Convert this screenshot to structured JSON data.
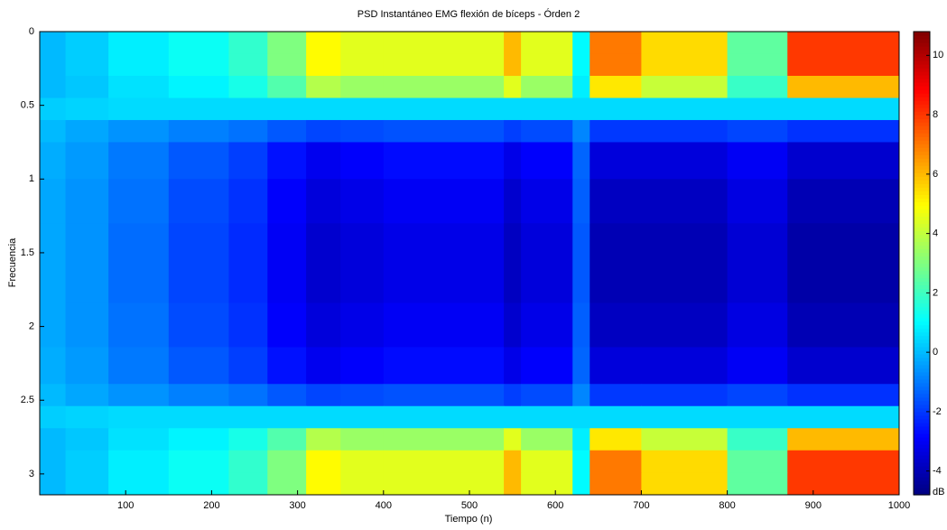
{
  "chart_data": {
    "type": "heatmap",
    "title": "PSD Instantáneo EMG flexión de bíceps - Órden 2",
    "x_label": "Tiempo (n)",
    "y_label": "Frecuencia",
    "colorbar_label": "dB",
    "colormap": "jet",
    "xbins": [
      0,
      30,
      80,
      150,
      220,
      265,
      310,
      350,
      400,
      540,
      560,
      620,
      640,
      700,
      800,
      870,
      1000
    ],
    "ybins": [
      0,
      0.15,
      0.3,
      0.45,
      0.6,
      0.75,
      1.0,
      1.3,
      1.84,
      2.14,
      2.39,
      2.54,
      2.69,
      2.84,
      2.99,
      3.1416
    ],
    "z": [
      [
        0,
        0.3,
        0.8,
        1.2,
        1.8,
        3,
        5,
        4.5,
        4.5,
        6,
        4.5,
        1,
        7,
        5.5,
        2.5,
        8
      ],
      [
        0,
        0.3,
        0.8,
        1.2,
        1.8,
        3,
        5,
        4.5,
        4.5,
        6,
        4.5,
        1,
        7,
        5.5,
        2.5,
        8
      ],
      [
        0,
        0.2,
        0.6,
        0.9,
        1.4,
        2.3,
        3.8,
        3.4,
        3.4,
        4.5,
        3.4,
        0.8,
        5.3,
        4.1,
        1.9,
        6
      ],
      [
        0.3,
        0.4,
        0.5,
        0.5,
        0.5,
        0.5,
        0.5,
        0.5,
        0.5,
        0.5,
        0.5,
        0.5,
        0.5,
        0.5,
        0.5,
        0.5
      ],
      [
        0,
        -0.3,
        -0.6,
        -0.9,
        -1.1,
        -1.5,
        -1.8,
        -1.7,
        -1.6,
        -1.9,
        -1.7,
        -0.8,
        -2,
        -2,
        -1.8,
        -2.1
      ],
      [
        -0.2,
        -0.5,
        -1,
        -1.5,
        -1.9,
        -2.6,
        -3.1,
        -2.9,
        -2.7,
        -3.2,
        -2.9,
        -1.3,
        -3.4,
        -3.4,
        -3,
        -3.6
      ],
      [
        -0.3,
        -0.6,
        -1.1,
        -1.7,
        -2.1,
        -2.9,
        -3.4,
        -3.2,
        -3,
        -3.6,
        -3.2,
        -1.4,
        -3.8,
        -3.8,
        -3.3,
        -4
      ],
      [
        -0.3,
        -0.6,
        -1.2,
        -1.8,
        -2.2,
        -3,
        -3.6,
        -3.4,
        -3.2,
        -3.8,
        -3.4,
        -1.5,
        -4,
        -4,
        -3.5,
        -4.2
      ],
      [
        -0.3,
        -0.6,
        -1.1,
        -1.7,
        -2.1,
        -2.9,
        -3.4,
        -3.2,
        -3,
        -3.6,
        -3.2,
        -1.4,
        -3.8,
        -3.8,
        -3.3,
        -4
      ],
      [
        -0.2,
        -0.5,
        -1,
        -1.5,
        -1.9,
        -2.6,
        -3.1,
        -2.9,
        -2.7,
        -3.2,
        -2.9,
        -1.3,
        -3.4,
        -3.4,
        -3,
        -3.6
      ],
      [
        0,
        -0.3,
        -0.6,
        -0.9,
        -1.1,
        -1.5,
        -1.8,
        -1.7,
        -1.6,
        -1.9,
        -1.7,
        -0.8,
        -2,
        -2,
        -1.8,
        -2.1
      ],
      [
        0.3,
        0.4,
        0.5,
        0.5,
        0.5,
        0.5,
        0.5,
        0.5,
        0.5,
        0.5,
        0.5,
        0.5,
        0.5,
        0.5,
        0.5,
        0.5
      ],
      [
        0,
        0.2,
        0.6,
        0.9,
        1.4,
        2.3,
        3.8,
        3.4,
        3.4,
        4.5,
        3.4,
        0.8,
        5.3,
        4.1,
        1.9,
        6
      ],
      [
        0,
        0.3,
        0.8,
        1.2,
        1.8,
        3,
        5,
        4.5,
        4.5,
        6,
        4.5,
        1,
        7,
        5.5,
        2.5,
        8
      ],
      [
        0,
        0.3,
        0.8,
        1.2,
        1.8,
        3,
        5,
        4.5,
        4.5,
        6,
        4.5,
        1,
        7,
        5.5,
        2.5,
        8
      ]
    ],
    "xlim": [
      0,
      1000
    ],
    "xticks": [
      100,
      200,
      300,
      400,
      500,
      600,
      700,
      800,
      900,
      1000
    ],
    "ylim": [
      0,
      3.1416
    ],
    "yticks": [
      0,
      0.5,
      1,
      1.5,
      2,
      2.5,
      3
    ],
    "clim": [
      -4.8,
      10.8
    ],
    "cticks": [
      -4,
      -2,
      0,
      2,
      4,
      6,
      8,
      10
    ]
  }
}
